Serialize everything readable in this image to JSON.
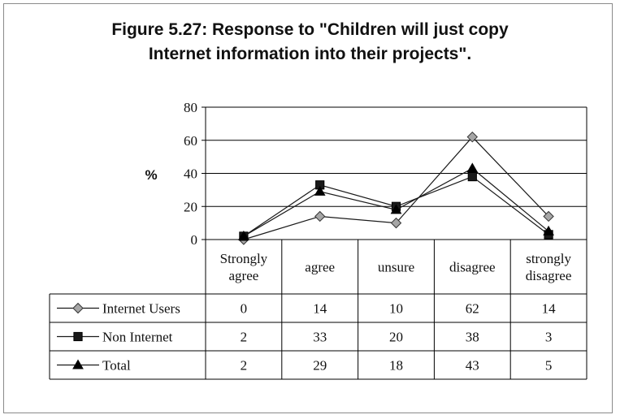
{
  "chart_data": {
    "type": "line",
    "title_lines": [
      "Figure 5.27: Response to \"Children will just copy",
      "Internet information into their projects\"."
    ],
    "ylabel": "%",
    "ylim": [
      0,
      80
    ],
    "yticks": [
      0,
      20,
      40,
      60,
      80
    ],
    "grid": true,
    "categories": [
      [
        "Strongly",
        "agree"
      ],
      [
        "agree"
      ],
      [
        "unsure"
      ],
      [
        "disagree"
      ],
      [
        "strongly",
        "disagree"
      ]
    ],
    "series": [
      {
        "name": "Internet Users",
        "marker": "diamond",
        "values": [
          0,
          14,
          10,
          62,
          14
        ]
      },
      {
        "name": "Non Internet",
        "marker": "square",
        "values": [
          2,
          33,
          20,
          38,
          3
        ]
      },
      {
        "name": "Total",
        "marker": "triangle",
        "values": [
          2,
          29,
          18,
          43,
          5
        ]
      }
    ],
    "legend": "data-table"
  },
  "colors": {
    "line": "#1a1a1a",
    "grid": "#000000",
    "diamond_fill": "#a6a6a6",
    "square_fill": "#1a1a1a",
    "triangle_fill": "#000000"
  }
}
